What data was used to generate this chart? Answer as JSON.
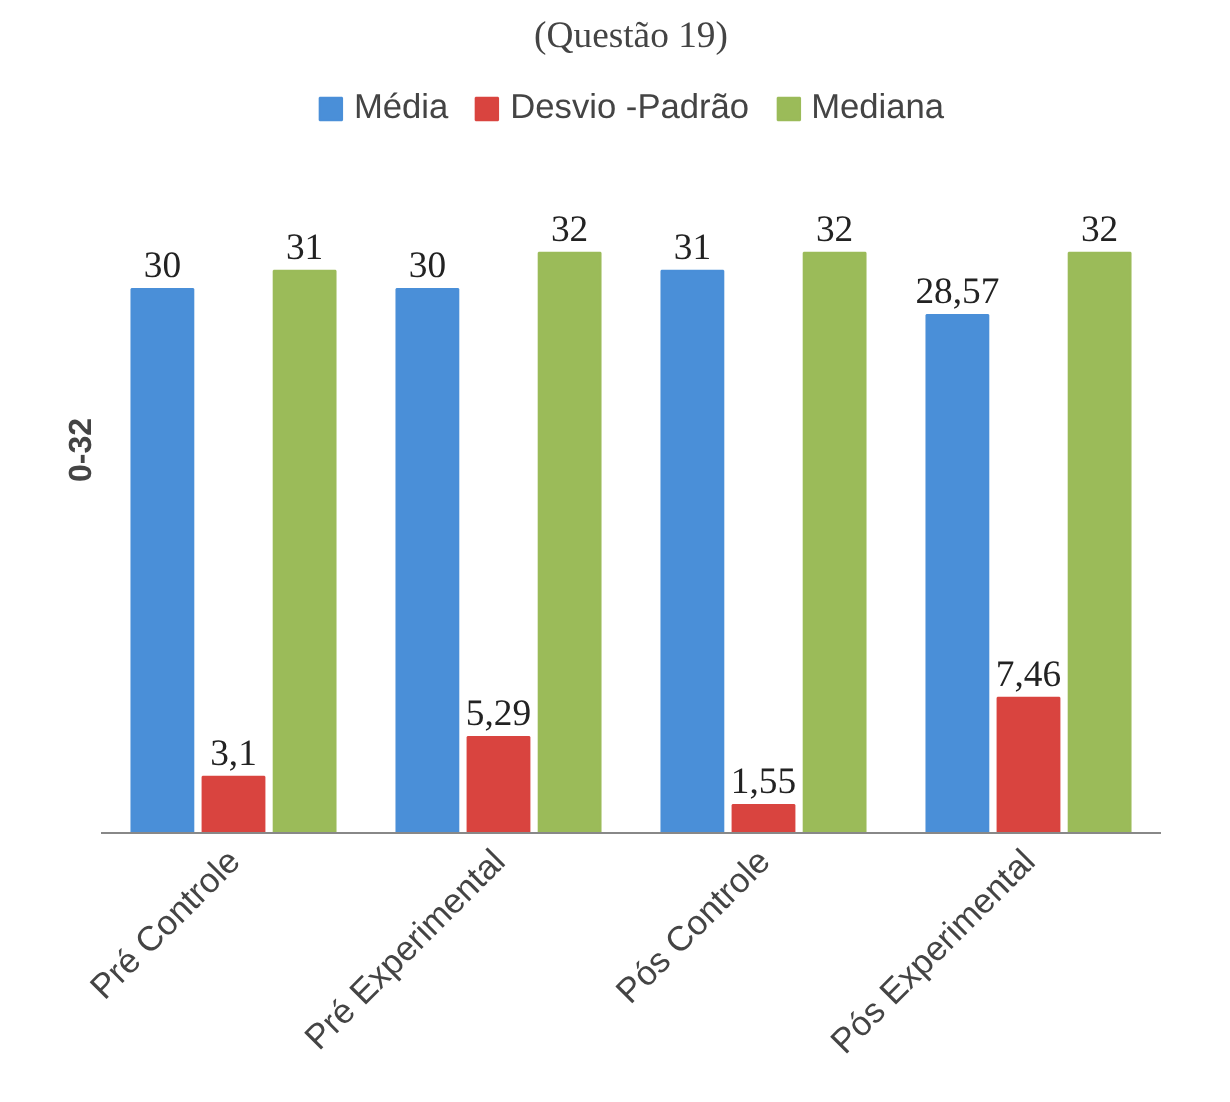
{
  "chart_data": {
    "type": "bar",
    "title": "(Questão 19)",
    "ylabel": "0-32",
    "categories": [
      "Pré Controle",
      "Pré Experimental",
      "Pós Controle",
      "Pós Experimental"
    ],
    "series": [
      {
        "name": "Média",
        "color": "#4a8fd8",
        "values": [
          30,
          30,
          31,
          28.57
        ],
        "value_labels": [
          "30",
          "30",
          "31",
          "28,57"
        ]
      },
      {
        "name": "Desvio -Padrão",
        "color": "#d9443f",
        "values": [
          3.1,
          5.29,
          1.55,
          7.46
        ],
        "value_labels": [
          "3,1",
          "5,29",
          "1,55",
          "7,46"
        ]
      },
      {
        "name": "Mediana",
        "color": "#9bbb59",
        "values": [
          31,
          32,
          32,
          32
        ],
        "value_labels": [
          "31",
          "32",
          "32",
          "32"
        ]
      }
    ],
    "legend": "top"
  }
}
